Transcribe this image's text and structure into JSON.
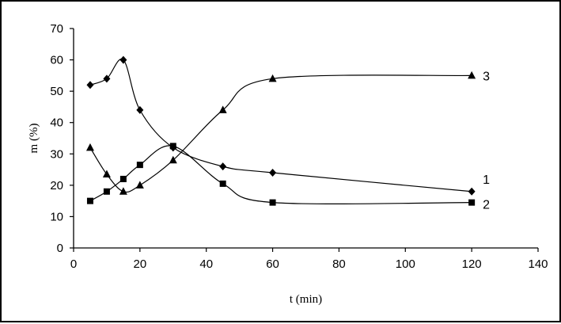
{
  "chart_data": {
    "type": "line",
    "title": "",
    "xlabel": "t (min)",
    "ylabel": "m (%)",
    "xlim": [
      0,
      140
    ],
    "ylim": [
      0,
      70
    ],
    "x_ticks": [
      "0",
      "20",
      "40",
      "60",
      "80",
      "100",
      "120",
      "140"
    ],
    "y_ticks": [
      "0",
      "10",
      "20",
      "30",
      "40",
      "50",
      "60",
      "70"
    ],
    "grid": false,
    "series": [
      {
        "name": "1",
        "marker": "diamond",
        "color": "#000000",
        "points": [
          [
            5,
            52
          ],
          [
            10,
            54
          ],
          [
            15,
            60
          ],
          [
            20,
            44
          ],
          [
            30,
            32
          ],
          [
            45,
            26
          ],
          [
            60,
            24
          ],
          [
            120,
            18
          ]
        ]
      },
      {
        "name": "2",
        "marker": "square",
        "color": "#000000",
        "points": [
          [
            5,
            15
          ],
          [
            10,
            18
          ],
          [
            15,
            22
          ],
          [
            20,
            26.5
          ],
          [
            30,
            32.5
          ],
          [
            45,
            20.5
          ],
          [
            60,
            14.5
          ],
          [
            120,
            14.5
          ]
        ]
      },
      {
        "name": "3",
        "marker": "triangle",
        "color": "#000000",
        "points": [
          [
            5,
            32
          ],
          [
            10,
            23.5
          ],
          [
            15,
            18
          ],
          [
            20,
            20
          ],
          [
            30,
            28
          ],
          [
            45,
            44
          ],
          [
            60,
            54
          ],
          [
            120,
            55
          ]
        ]
      }
    ]
  }
}
